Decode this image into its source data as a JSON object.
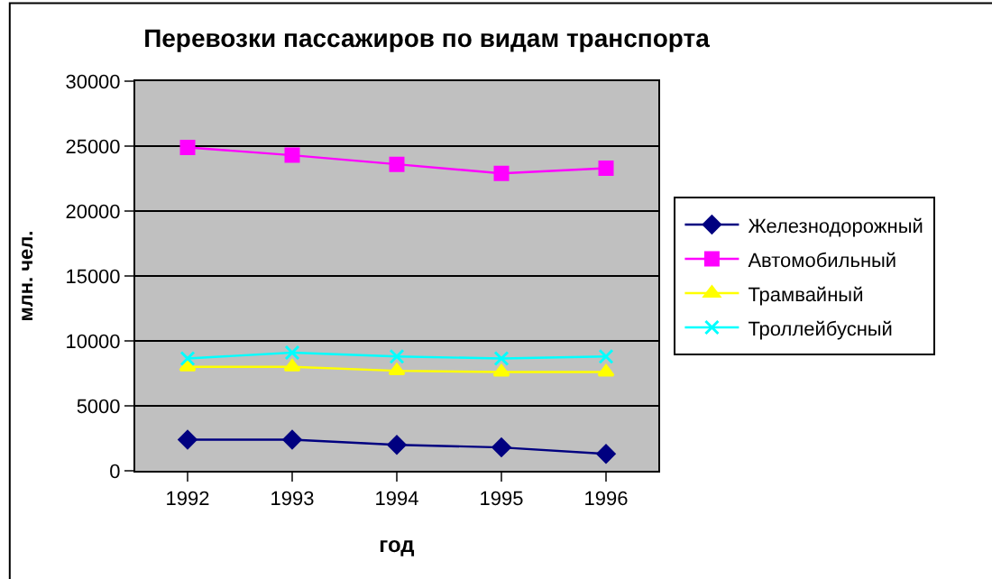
{
  "chart_data": {
    "type": "line",
    "title": "Перевозки пассажиров по видам транспорта",
    "xlabel": "год",
    "ylabel": "млн. чел.",
    "categories": [
      "1992",
      "1993",
      "1994",
      "1995",
      "1996"
    ],
    "series": [
      {
        "name": "Железнодорожный",
        "color": "#000080",
        "marker": "diamond",
        "values": [
          2400,
          2400,
          2000,
          1800,
          1300
        ]
      },
      {
        "name": "Автомобильный",
        "color": "#ff00ff",
        "marker": "square",
        "values": [
          24900,
          24300,
          23600,
          22900,
          23300
        ]
      },
      {
        "name": "Трамвайный",
        "color": "#ffff00",
        "marker": "triangle",
        "values": [
          8000,
          8000,
          7700,
          7600,
          7600
        ]
      },
      {
        "name": "Троллейбусный",
        "color": "#00ffff",
        "marker": "cross",
        "values": [
          8650,
          9100,
          8800,
          8650,
          8800
        ]
      }
    ],
    "ylim": [
      0,
      30000
    ],
    "yticks": [
      0,
      5000,
      10000,
      15000,
      20000,
      25000,
      30000
    ],
    "grid": "y",
    "legend": "right"
  }
}
